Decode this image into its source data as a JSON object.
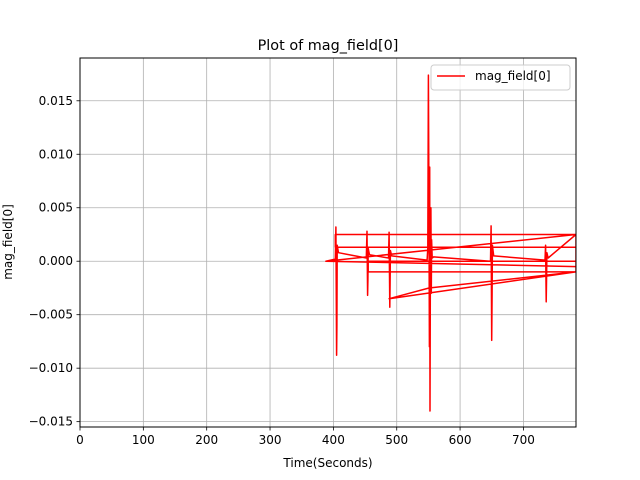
{
  "chart_data": {
    "type": "line",
    "title": "Plot of mag_field[0]",
    "xlabel": "Time(Seconds)",
    "ylabel": "mag_field[0]",
    "xlim": [
      0,
      783
    ],
    "ylim": [
      -0.0155,
      0.019
    ],
    "xticks": [
      0,
      100,
      200,
      300,
      400,
      500,
      600,
      700
    ],
    "yticks": [
      -0.015,
      -0.01,
      -0.005,
      0.0,
      0.005,
      0.01,
      0.015
    ],
    "ytick_labels": [
      "−0.015",
      "−0.010",
      "−0.005",
      "0.000",
      "0.005",
      "0.010",
      "0.015"
    ],
    "grid": true,
    "legend_position": "top-right",
    "colors": {
      "series": "#ff0000",
      "grid": "#b0b0b0",
      "axes": "#000000"
    },
    "series": [
      {
        "name": "mag_field[0]",
        "x": [
          388,
          403,
          404,
          405,
          405.5,
          406,
          408,
          452,
          453,
          454,
          454.5,
          455,
          457,
          487,
          488,
          489,
          489.5,
          490,
          492,
          548,
          549,
          550,
          551,
          551.5,
          552,
          552.5,
          553,
          554,
          554.5,
          555,
          556,
          558,
          648,
          649,
          650,
          650.5,
          651,
          653,
          734,
          735,
          736,
          736.5,
          737,
          739,
          783,
          783,
          403,
          403,
          783,
          783,
          455,
          455,
          783,
          783,
          388,
          783,
          783,
          488,
          488,
          551,
          551,
          783
        ],
        "y": [
          0.0,
          0.0002,
          0.0032,
          -0.0088,
          -0.006,
          0.0015,
          0.0008,
          0.0003,
          0.0028,
          -0.0032,
          -0.0018,
          0.0012,
          0.0006,
          0.0003,
          0.0027,
          -0.0043,
          -0.002,
          0.001,
          0.0005,
          0.0001,
          0.0012,
          0.0174,
          0.004,
          -0.008,
          0.0088,
          -0.014,
          -0.003,
          0.005,
          -0.003,
          0.002,
          0.0003,
          0.0004,
          0.0,
          0.0033,
          -0.0074,
          -0.003,
          0.0015,
          0.0005,
          0.0001,
          0.0015,
          -0.0038,
          -0.002,
          0.0008,
          0.0003,
          0.0025,
          0.0025,
          0.0025,
          0.0013,
          0.0013,
          0.0,
          0.0,
          -0.001,
          -0.001,
          -0.0005,
          0.0,
          0.0025,
          -0.001,
          -0.0035,
          -0.0035,
          -0.0025,
          -0.0025,
          -0.001
        ]
      }
    ]
  }
}
